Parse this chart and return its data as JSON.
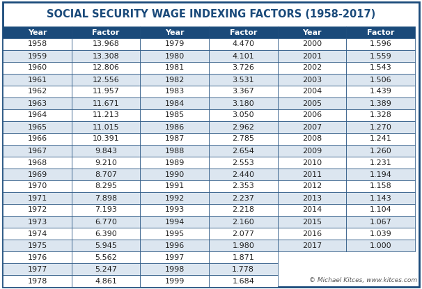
{
  "title": "SOCIAL SECURITY WAGE INDEXING FACTORS (1958-2017)",
  "col1": {
    "years": [
      1958,
      1959,
      1960,
      1961,
      1962,
      1963,
      1964,
      1965,
      1966,
      1967,
      1968,
      1969,
      1970,
      1971,
      1972,
      1973,
      1974,
      1975,
      1976,
      1977,
      1978
    ],
    "factors": [
      "13.968",
      "13.308",
      "12.806",
      "12.556",
      "11.957",
      "11.671",
      "11.213",
      "11.015",
      "10.391",
      "9.843",
      "9.210",
      "8.707",
      "8.295",
      "7.898",
      "7.193",
      "6.770",
      "6.390",
      "5.945",
      "5.562",
      "5.247",
      "4.861"
    ]
  },
  "col2": {
    "years": [
      1979,
      1980,
      1981,
      1982,
      1983,
      1984,
      1985,
      1986,
      1987,
      1988,
      1989,
      1990,
      1991,
      1992,
      1993,
      1994,
      1995,
      1996,
      1997,
      1998,
      1999
    ],
    "factors": [
      "4.470",
      "4.101",
      "3.726",
      "3.531",
      "3.367",
      "3.180",
      "3.050",
      "2.962",
      "2.785",
      "2.654",
      "2.553",
      "2.440",
      "2.353",
      "2.237",
      "2.218",
      "2.160",
      "2.077",
      "1.980",
      "1.871",
      "1.778",
      "1.684"
    ]
  },
  "col3": {
    "years": [
      2000,
      2001,
      2002,
      2003,
      2004,
      2005,
      2006,
      2007,
      2008,
      2009,
      2010,
      2011,
      2012,
      2013,
      2014,
      2015,
      2016,
      2017
    ],
    "factors": [
      "1.596",
      "1.559",
      "1.543",
      "1.506",
      "1.439",
      "1.389",
      "1.328",
      "1.270",
      "1.241",
      "1.260",
      "1.231",
      "1.194",
      "1.158",
      "1.143",
      "1.104",
      "1.067",
      "1.039",
      "1.000"
    ]
  },
  "header_bg": "#1a4a7a",
  "header_text": "#ffffff",
  "row_even_bg": "#dce6f0",
  "row_odd_bg": "#ffffff",
  "border_color": "#1a4a7a",
  "title_color": "#1a4a7a",
  "outer_border": "#1a4a7a",
  "footer_text": "© Michael Kitces, www.kitces.com",
  "footer_url": "www.kitces.com"
}
